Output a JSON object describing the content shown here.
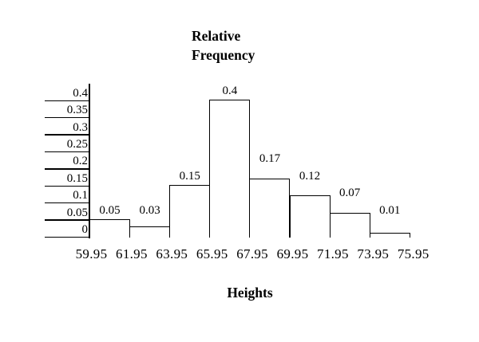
{
  "page": {
    "background_color": "#ffffff",
    "text_color": "#000000"
  },
  "chart_data": {
    "type": "bar",
    "subtype": "histogram",
    "title": "Relative Frequency",
    "title_lines": [
      "Relative",
      "Frequency"
    ],
    "ylabel": "Relative Frequency",
    "xlabel": "Heights",
    "bin_edges": [
      "59.95",
      "61.95",
      "63.95",
      "65.95",
      "67.95",
      "69.95",
      "71.95",
      "73.95",
      "75.95"
    ],
    "categories": [
      "59.95-61.95",
      "61.95-63.95",
      "63.95-65.95",
      "65.95-67.95",
      "67.95-69.95",
      "69.95-71.95",
      "71.95-73.95",
      "73.95-75.95"
    ],
    "values": [
      0.05,
      0.03,
      0.15,
      0.4,
      0.17,
      0.12,
      0.07,
      0.01
    ],
    "bar_labels": [
      "0.05",
      "0.03",
      "0.15",
      "0.4",
      "0.17",
      "0.12",
      "0.07",
      "0.01"
    ],
    "y_ticks": [
      0,
      0.05,
      0.1,
      0.15,
      0.2,
      0.25,
      0.3,
      0.35,
      0.4
    ],
    "y_tick_labels": [
      "0",
      "0.05",
      "0.1",
      "0.15",
      "0.2",
      "0.25",
      "0.3",
      "0.35",
      "0.4"
    ],
    "ylim": [
      0,
      0.4
    ],
    "grid": "off",
    "legend": "none",
    "bar_fill": "#ffffff",
    "line_color": "#000000",
    "text_color": "#000000"
  }
}
